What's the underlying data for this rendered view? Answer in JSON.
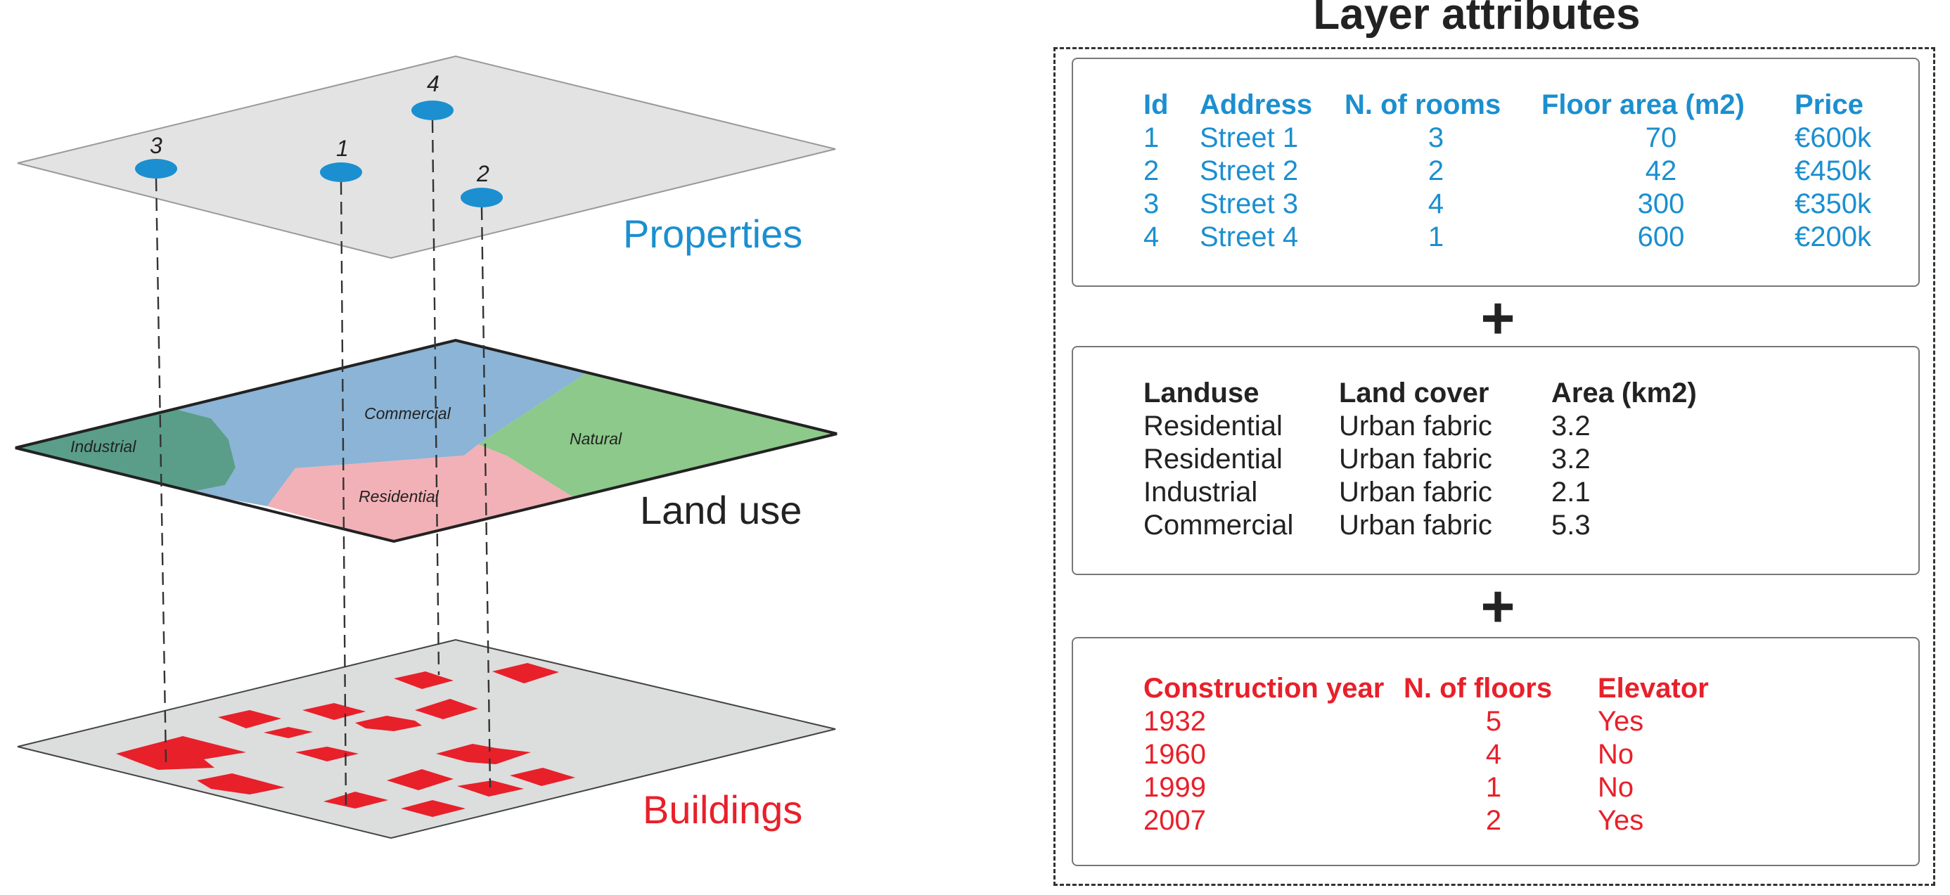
{
  "layers": {
    "properties": {
      "label": "Properties",
      "color": "#1b8fd0",
      "points": [
        "1",
        "2",
        "3",
        "4"
      ]
    },
    "land_use": {
      "label": "Land use",
      "color": "#222222",
      "zones": [
        "Industrial",
        "Commercial",
        "Natural",
        "Residential"
      ],
      "zone_colors": {
        "Industrial": "#5a9e8a",
        "Commercial": "#8bb4d6",
        "Natural": "#8cc98a",
        "Residential": "#f2b1b6"
      }
    },
    "buildings": {
      "label": "Buildings",
      "color": "#e8202a",
      "building_color": "#e8202a"
    }
  },
  "panel": {
    "title": "Layer attributes",
    "plus": "+",
    "properties_table": {
      "columns": [
        "Id",
        "Address",
        "N. of rooms",
        "Floor area (m2)",
        "Price"
      ],
      "rows": [
        [
          "1",
          "Street 1",
          "3",
          "70",
          "€600k"
        ],
        [
          "2",
          "Street 2",
          "2",
          "42",
          "€450k"
        ],
        [
          "3",
          "Street 3",
          "4",
          "300",
          "€350k"
        ],
        [
          "4",
          "Street 4",
          "1",
          "600",
          "€200k"
        ]
      ]
    },
    "landuse_table": {
      "columns": [
        "Landuse",
        "Land cover",
        "Area (km2)"
      ],
      "rows": [
        [
          "Residential",
          "Urban fabric",
          "3.2"
        ],
        [
          "Residential",
          "Urban fabric",
          "3.2"
        ],
        [
          "Industrial",
          "Urban fabric",
          "2.1"
        ],
        [
          "Commercial",
          "Urban fabric",
          "5.3"
        ]
      ]
    },
    "buildings_table": {
      "columns": [
        "Construction year",
        "N. of floors",
        "Elevator"
      ],
      "rows": [
        [
          "1932",
          "5",
          "Yes"
        ],
        [
          "1960",
          "4",
          "No"
        ],
        [
          "1999",
          "1",
          "No"
        ],
        [
          "2007",
          "2",
          "Yes"
        ]
      ]
    }
  }
}
